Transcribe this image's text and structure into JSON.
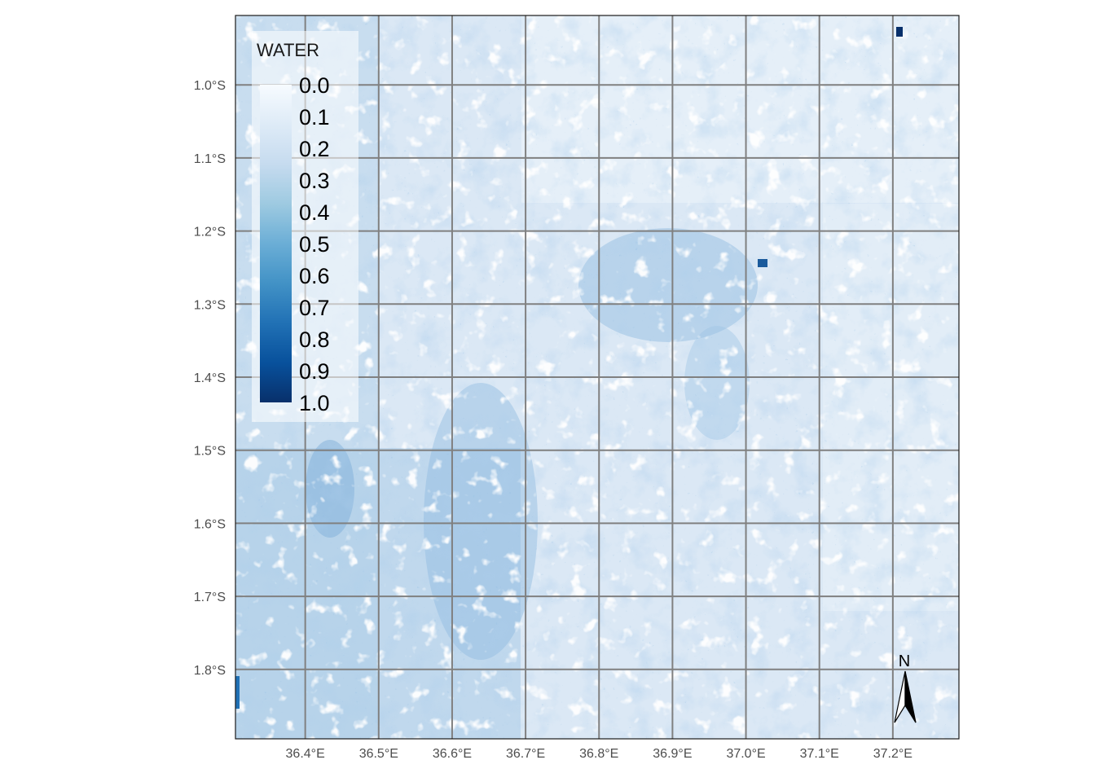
{
  "map": {
    "colors": {
      "background": "#ffffff",
      "grid": "#808080",
      "panel_border": "#1a1a1a",
      "palette_low": "#f7fbff",
      "palette_high": "#08306b"
    },
    "x_axis": {
      "ticks": [
        "36.4°E",
        "36.5°E",
        "36.6°E",
        "36.7°E",
        "36.8°E",
        "36.9°E",
        "37.0°E",
        "37.1°E",
        "37.2°E"
      ],
      "values": [
        36.4,
        36.5,
        36.6,
        36.7,
        36.8,
        36.9,
        37.0,
        37.1,
        37.2
      ],
      "range": [
        36.305,
        37.29
      ]
    },
    "y_axis": {
      "ticks": [
        "1.0°S",
        "1.1°S",
        "1.2°S",
        "1.3°S",
        "1.4°S",
        "1.5°S",
        "1.6°S",
        "1.7°S",
        "1.8°S"
      ],
      "values": [
        -1.0,
        -1.1,
        -1.2,
        -1.3,
        -1.4,
        -1.5,
        -1.6,
        -1.7,
        -1.8
      ],
      "range": [
        -1.895,
        -0.905
      ]
    },
    "legend": {
      "title": "WATER",
      "labels": [
        "0.0",
        "0.1",
        "0.2",
        "0.3",
        "0.4",
        "0.5",
        "0.6",
        "0.7",
        "0.8",
        "0.9",
        "1.0"
      ],
      "position": "top-left"
    },
    "north_arrow": {
      "label": "N",
      "position": "bottom-right"
    },
    "raster": {
      "variable": "WATER",
      "scale": [
        0.0,
        1.0
      ],
      "palette": "Blues"
    }
  }
}
